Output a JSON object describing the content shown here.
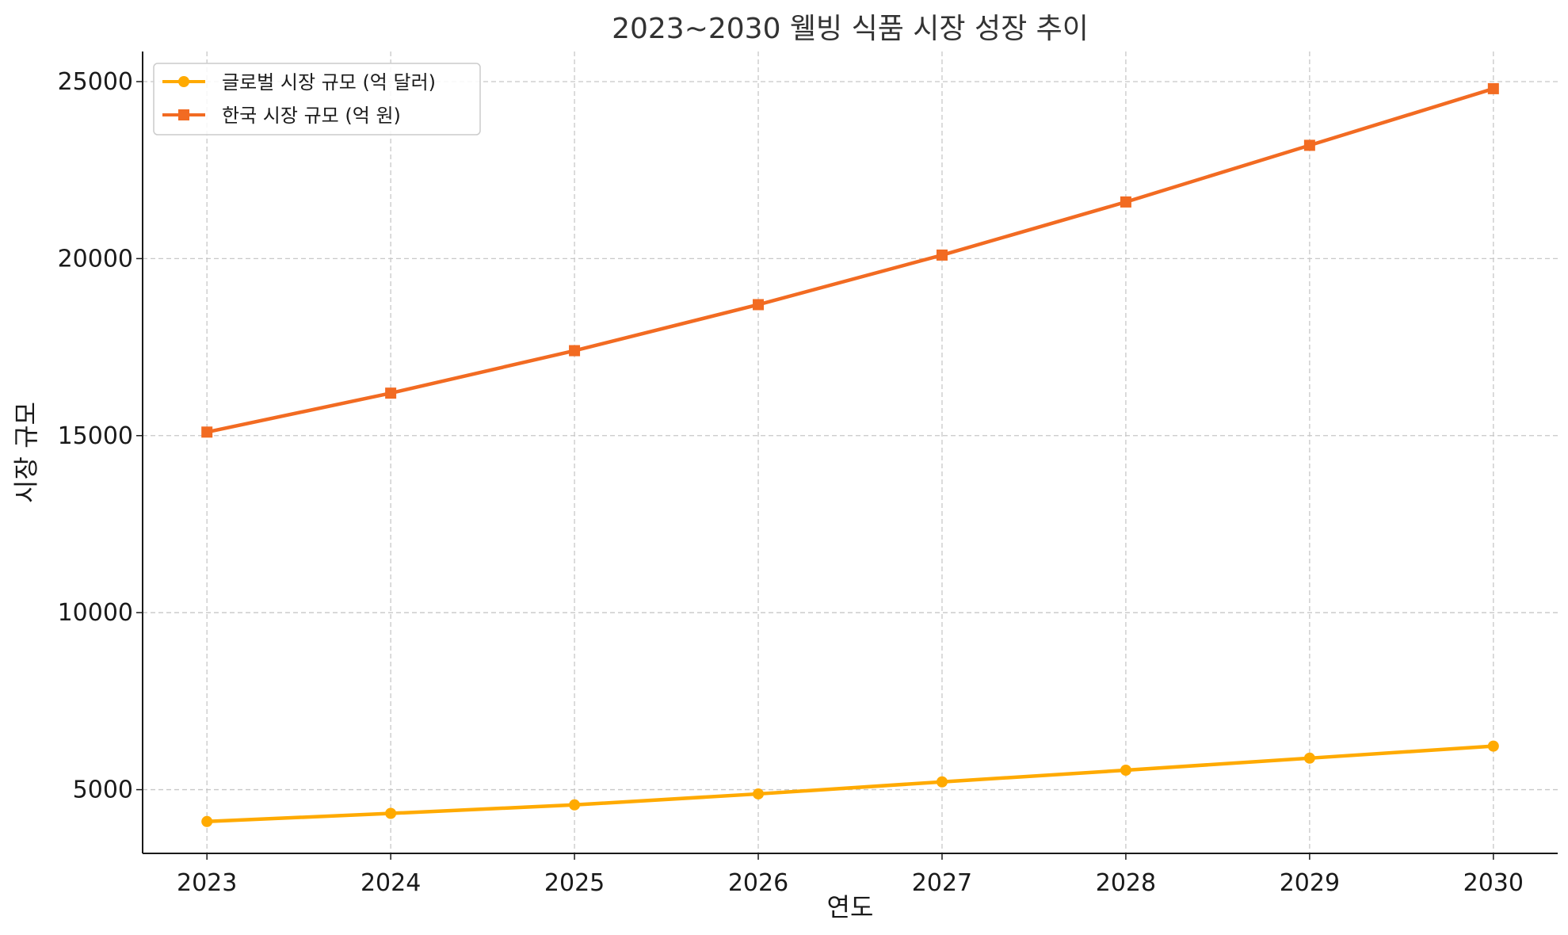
{
  "chart_data": {
    "type": "line",
    "title": "2023~2030 웰빙 식품 시장 성장 추이",
    "xlabel": "연도",
    "ylabel": "시장 규모",
    "x": [
      2023,
      2024,
      2025,
      2026,
      2027,
      2028,
      2029,
      2030
    ],
    "x_tick_labels": [
      "2023",
      "2024",
      "2025",
      "2026",
      "2027",
      "2028",
      "2029",
      "2030"
    ],
    "yticks": [
      5000,
      10000,
      15000,
      20000,
      25000
    ],
    "y_tick_labels": [
      "5000",
      "10000",
      "15000",
      "20000",
      "25000"
    ],
    "ylim": [
      3200,
      25850
    ],
    "xlim": [
      2022.65,
      2030.35
    ],
    "grid": true,
    "legend_position": "top-left",
    "series": [
      {
        "name": "글로벌 시장 규모 (억 달러)",
        "marker": "circle",
        "color": "#FFAA00",
        "values": [
          4100,
          4330,
          4570,
          4880,
          5220,
          5550,
          5890,
          6230
        ]
      },
      {
        "name": "한국 시장 규모 (억 원)",
        "marker": "square",
        "color": "#F26B22",
        "values": [
          15100,
          16200,
          17400,
          18700,
          20100,
          21600,
          23200,
          24800
        ]
      }
    ]
  }
}
